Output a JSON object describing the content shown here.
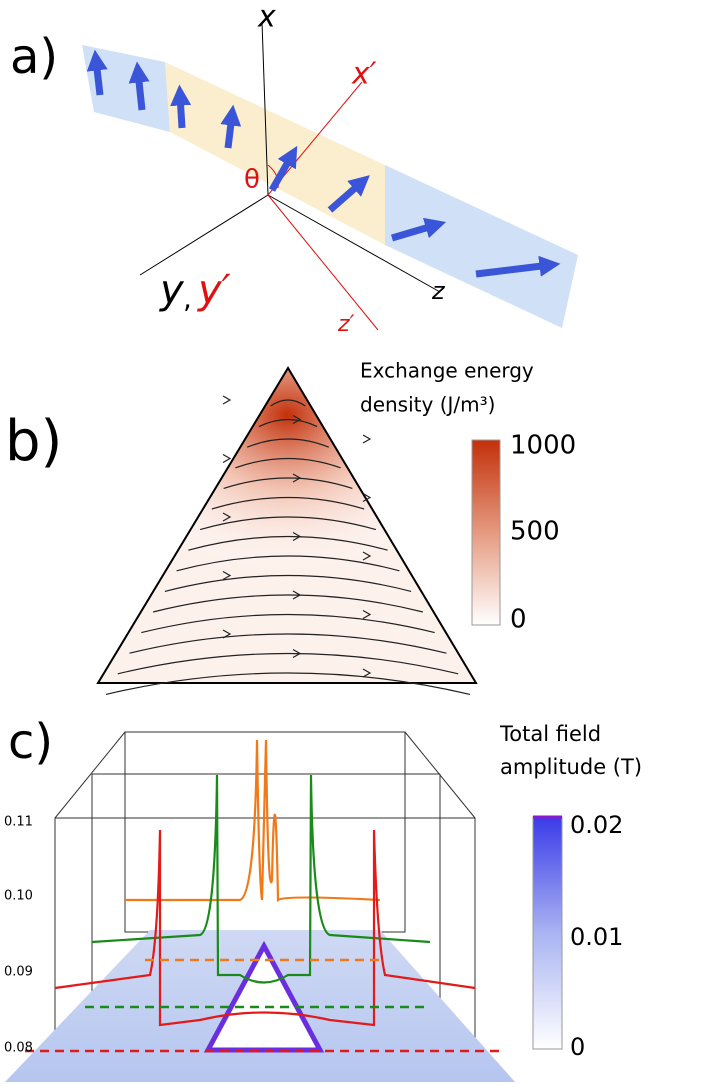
{
  "panel_a": {
    "label": "a)",
    "axis_x": "x",
    "axis_x_prime": "x′",
    "axis_y": "y",
    "axis_y_prime": "y′",
    "axis_z": "z",
    "axis_z_prime": "z′",
    "angle": "θ"
  },
  "panel_b": {
    "label": "b)",
    "colorbar_title": [
      "Exchange energy",
      "density (J/m³)"
    ],
    "colorbar_ticks": [
      "1000",
      "500",
      "0"
    ]
  },
  "panel_c": {
    "label": "c)",
    "colorbar_title": [
      "Total field",
      "amplitude (T)"
    ],
    "colorbar_ticks": [
      "0.02",
      "0.01",
      "0"
    ],
    "axis_ticks": [
      "0.11",
      "0.10",
      "0.09",
      "0.08"
    ]
  }
}
